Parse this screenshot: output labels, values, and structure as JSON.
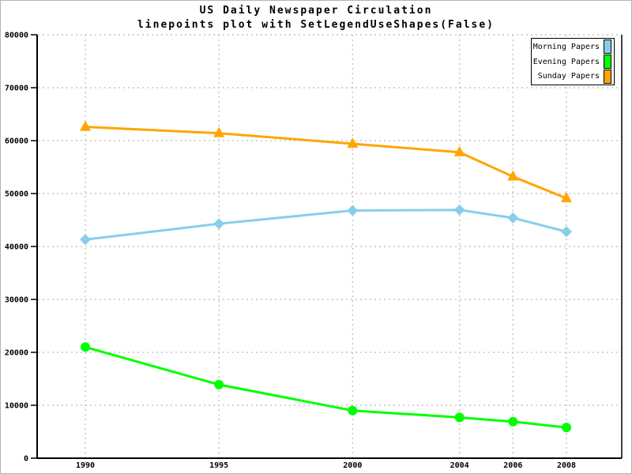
{
  "page": {
    "title": "US Daily Newspaper Circulation",
    "subtitle": "linepoints plot with SetLegendUseShapes(False)"
  },
  "legend": {
    "position": "top-right",
    "items": [
      {
        "label": "Morning Papers",
        "color": "#87CEEB"
      },
      {
        "label": "Evening Papers",
        "color": "#00FF00"
      },
      {
        "label": "Sunday Papers",
        "color": "#FFA500"
      }
    ]
  },
  "colors": {
    "background": "#ffffff",
    "frame": "#b4b4b4",
    "axis": "#000000",
    "grid": "#c6c6c6"
  },
  "chart_data": {
    "type": "line",
    "title": "US Daily Newspaper Circulation",
    "subtitle": "linepoints plot with SetLegendUseShapes(False)",
    "xlabel": "",
    "ylabel": "",
    "x": [
      1990,
      1995,
      2000,
      2004,
      2006,
      2008
    ],
    "x_tick_labels": [
      "1990",
      "1995",
      "2000",
      "2004",
      "2006",
      "2008"
    ],
    "y_ticks": [
      0,
      10000,
      20000,
      30000,
      40000,
      50000,
      60000,
      70000,
      80000
    ],
    "y_tick_labels": [
      "0",
      "10000",
      "20000",
      "30000",
      "40000",
      "50000",
      "60000",
      "70000",
      "80000"
    ],
    "ylim": [
      0,
      80000
    ],
    "grid": true,
    "grid_style": "dashed",
    "legend_position": "top-right",
    "series": [
      {
        "name": "Morning Papers",
        "color": "#87CEEB",
        "marker": "diamond",
        "values": [
          41300,
          44300,
          46800,
          46900,
          45400,
          42800
        ]
      },
      {
        "name": "Evening Papers",
        "color": "#00FF00",
        "marker": "circle",
        "values": [
          21000,
          13900,
          9000,
          7700,
          6900,
          5800
        ]
      },
      {
        "name": "Sunday Papers",
        "color": "#FFA500",
        "marker": "triangle",
        "values": [
          62600,
          61400,
          59400,
          57800,
          53200,
          49100
        ]
      }
    ]
  }
}
